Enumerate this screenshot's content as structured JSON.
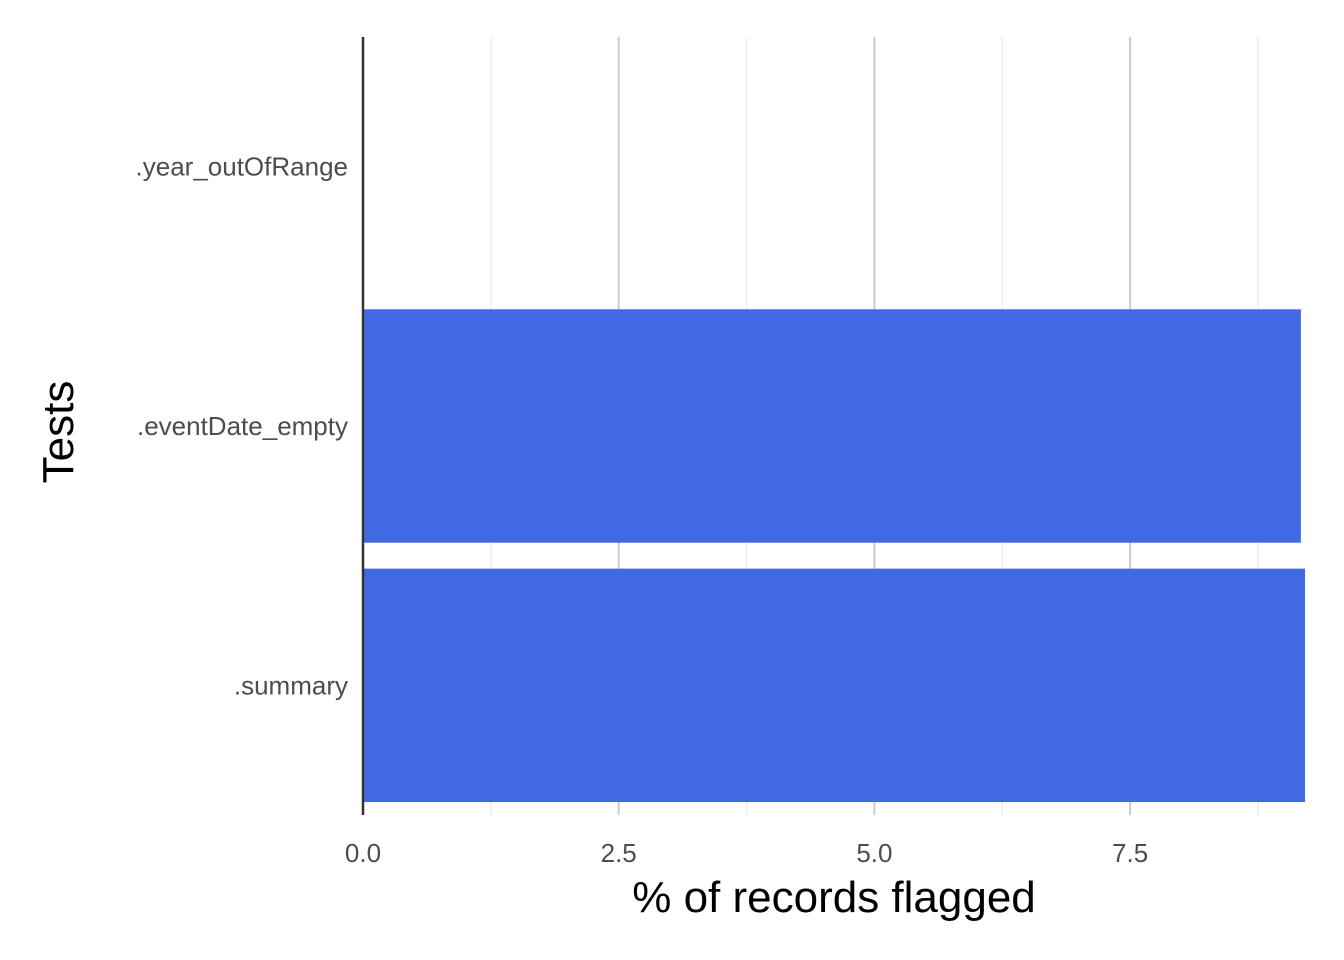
{
  "chart_data": {
    "type": "bar",
    "orientation": "horizontal",
    "categories": [
      ".year_outOfRange",
      ".eventDate_empty",
      ".summary"
    ],
    "values": [
      0,
      9.17,
      9.21
    ],
    "bar_color": "#4169E1",
    "xlabel": "% of records flagged",
    "ylabel": "Tests",
    "xlim": [
      0,
      9.21
    ],
    "x_ticks": [
      0,
      2.5,
      5,
      7.5
    ],
    "x_tick_labels": [
      "0.0",
      "2.5",
      "5.0",
      "7.5"
    ],
    "x_minor_ticks": [
      1.25,
      3.75,
      6.25,
      8.75
    ],
    "grid": "vertical",
    "legend": "none"
  }
}
